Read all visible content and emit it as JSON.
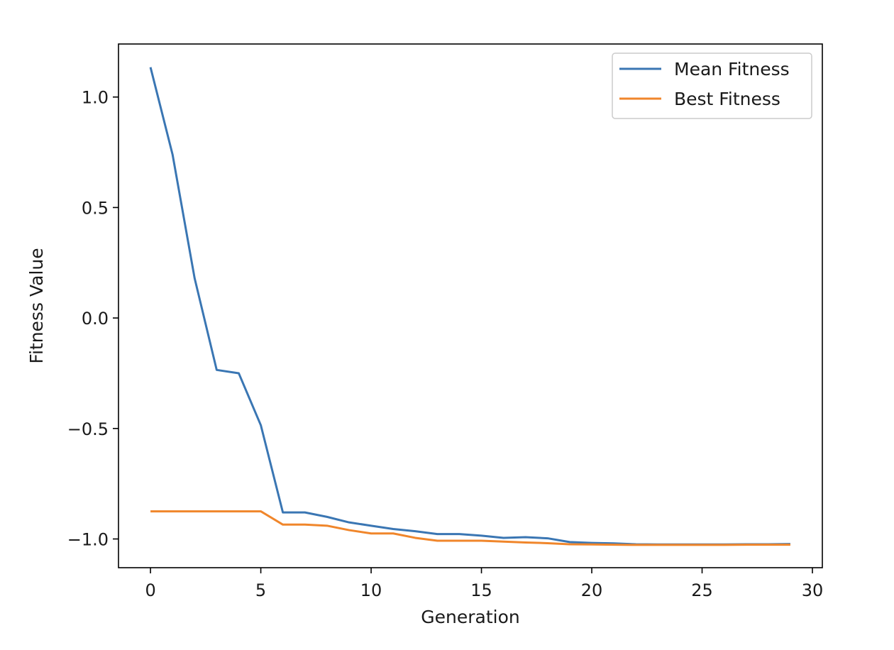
{
  "chart_data": {
    "type": "line",
    "title": "",
    "xlabel": "Generation",
    "ylabel": "Fitness Value",
    "xlim": [
      -1.45,
      30.45
    ],
    "ylim": [
      -1.13,
      1.24
    ],
    "xticks": [
      0,
      5,
      10,
      15,
      20,
      25,
      30
    ],
    "xtick_labels": [
      "0",
      "5",
      "10",
      "15",
      "20",
      "25",
      "30"
    ],
    "yticks": [
      1.0,
      0.5,
      0.0,
      -0.5,
      -1.0
    ],
    "ytick_labels": [
      "1.0",
      "0.5",
      "0.0",
      "−0.5",
      "−1.0"
    ],
    "grid": false,
    "legend_position": "upper right",
    "x": [
      0,
      1,
      2,
      3,
      4,
      5,
      6,
      7,
      8,
      9,
      10,
      11,
      12,
      13,
      14,
      15,
      16,
      17,
      18,
      19,
      20,
      21,
      22,
      23,
      24,
      25,
      26,
      27,
      28,
      29
    ],
    "series": [
      {
        "name": "Mean Fitness",
        "color": "#3a76b3",
        "values": [
          1.135,
          0.74,
          0.18,
          -0.235,
          -0.25,
          -0.485,
          -0.88,
          -0.88,
          -0.9,
          -0.925,
          -0.94,
          -0.955,
          -0.965,
          -0.978,
          -0.978,
          -0.985,
          -0.995,
          -0.992,
          -0.997,
          -1.014,
          -1.018,
          -1.02,
          -1.024,
          -1.025,
          -1.025,
          -1.025,
          -1.025,
          -1.024,
          -1.024,
          -1.023
        ]
      },
      {
        "name": "Best Fitness",
        "color": "#f0862b",
        "values": [
          -0.875,
          -0.875,
          -0.875,
          -0.875,
          -0.875,
          -0.875,
          -0.935,
          -0.935,
          -0.94,
          -0.96,
          -0.975,
          -0.975,
          -0.995,
          -1.008,
          -1.008,
          -1.008,
          -1.012,
          -1.016,
          -1.019,
          -1.024,
          -1.025,
          -1.026,
          -1.027,
          -1.027,
          -1.027,
          -1.027,
          -1.027,
          -1.026,
          -1.026,
          -1.026
        ]
      }
    ]
  }
}
